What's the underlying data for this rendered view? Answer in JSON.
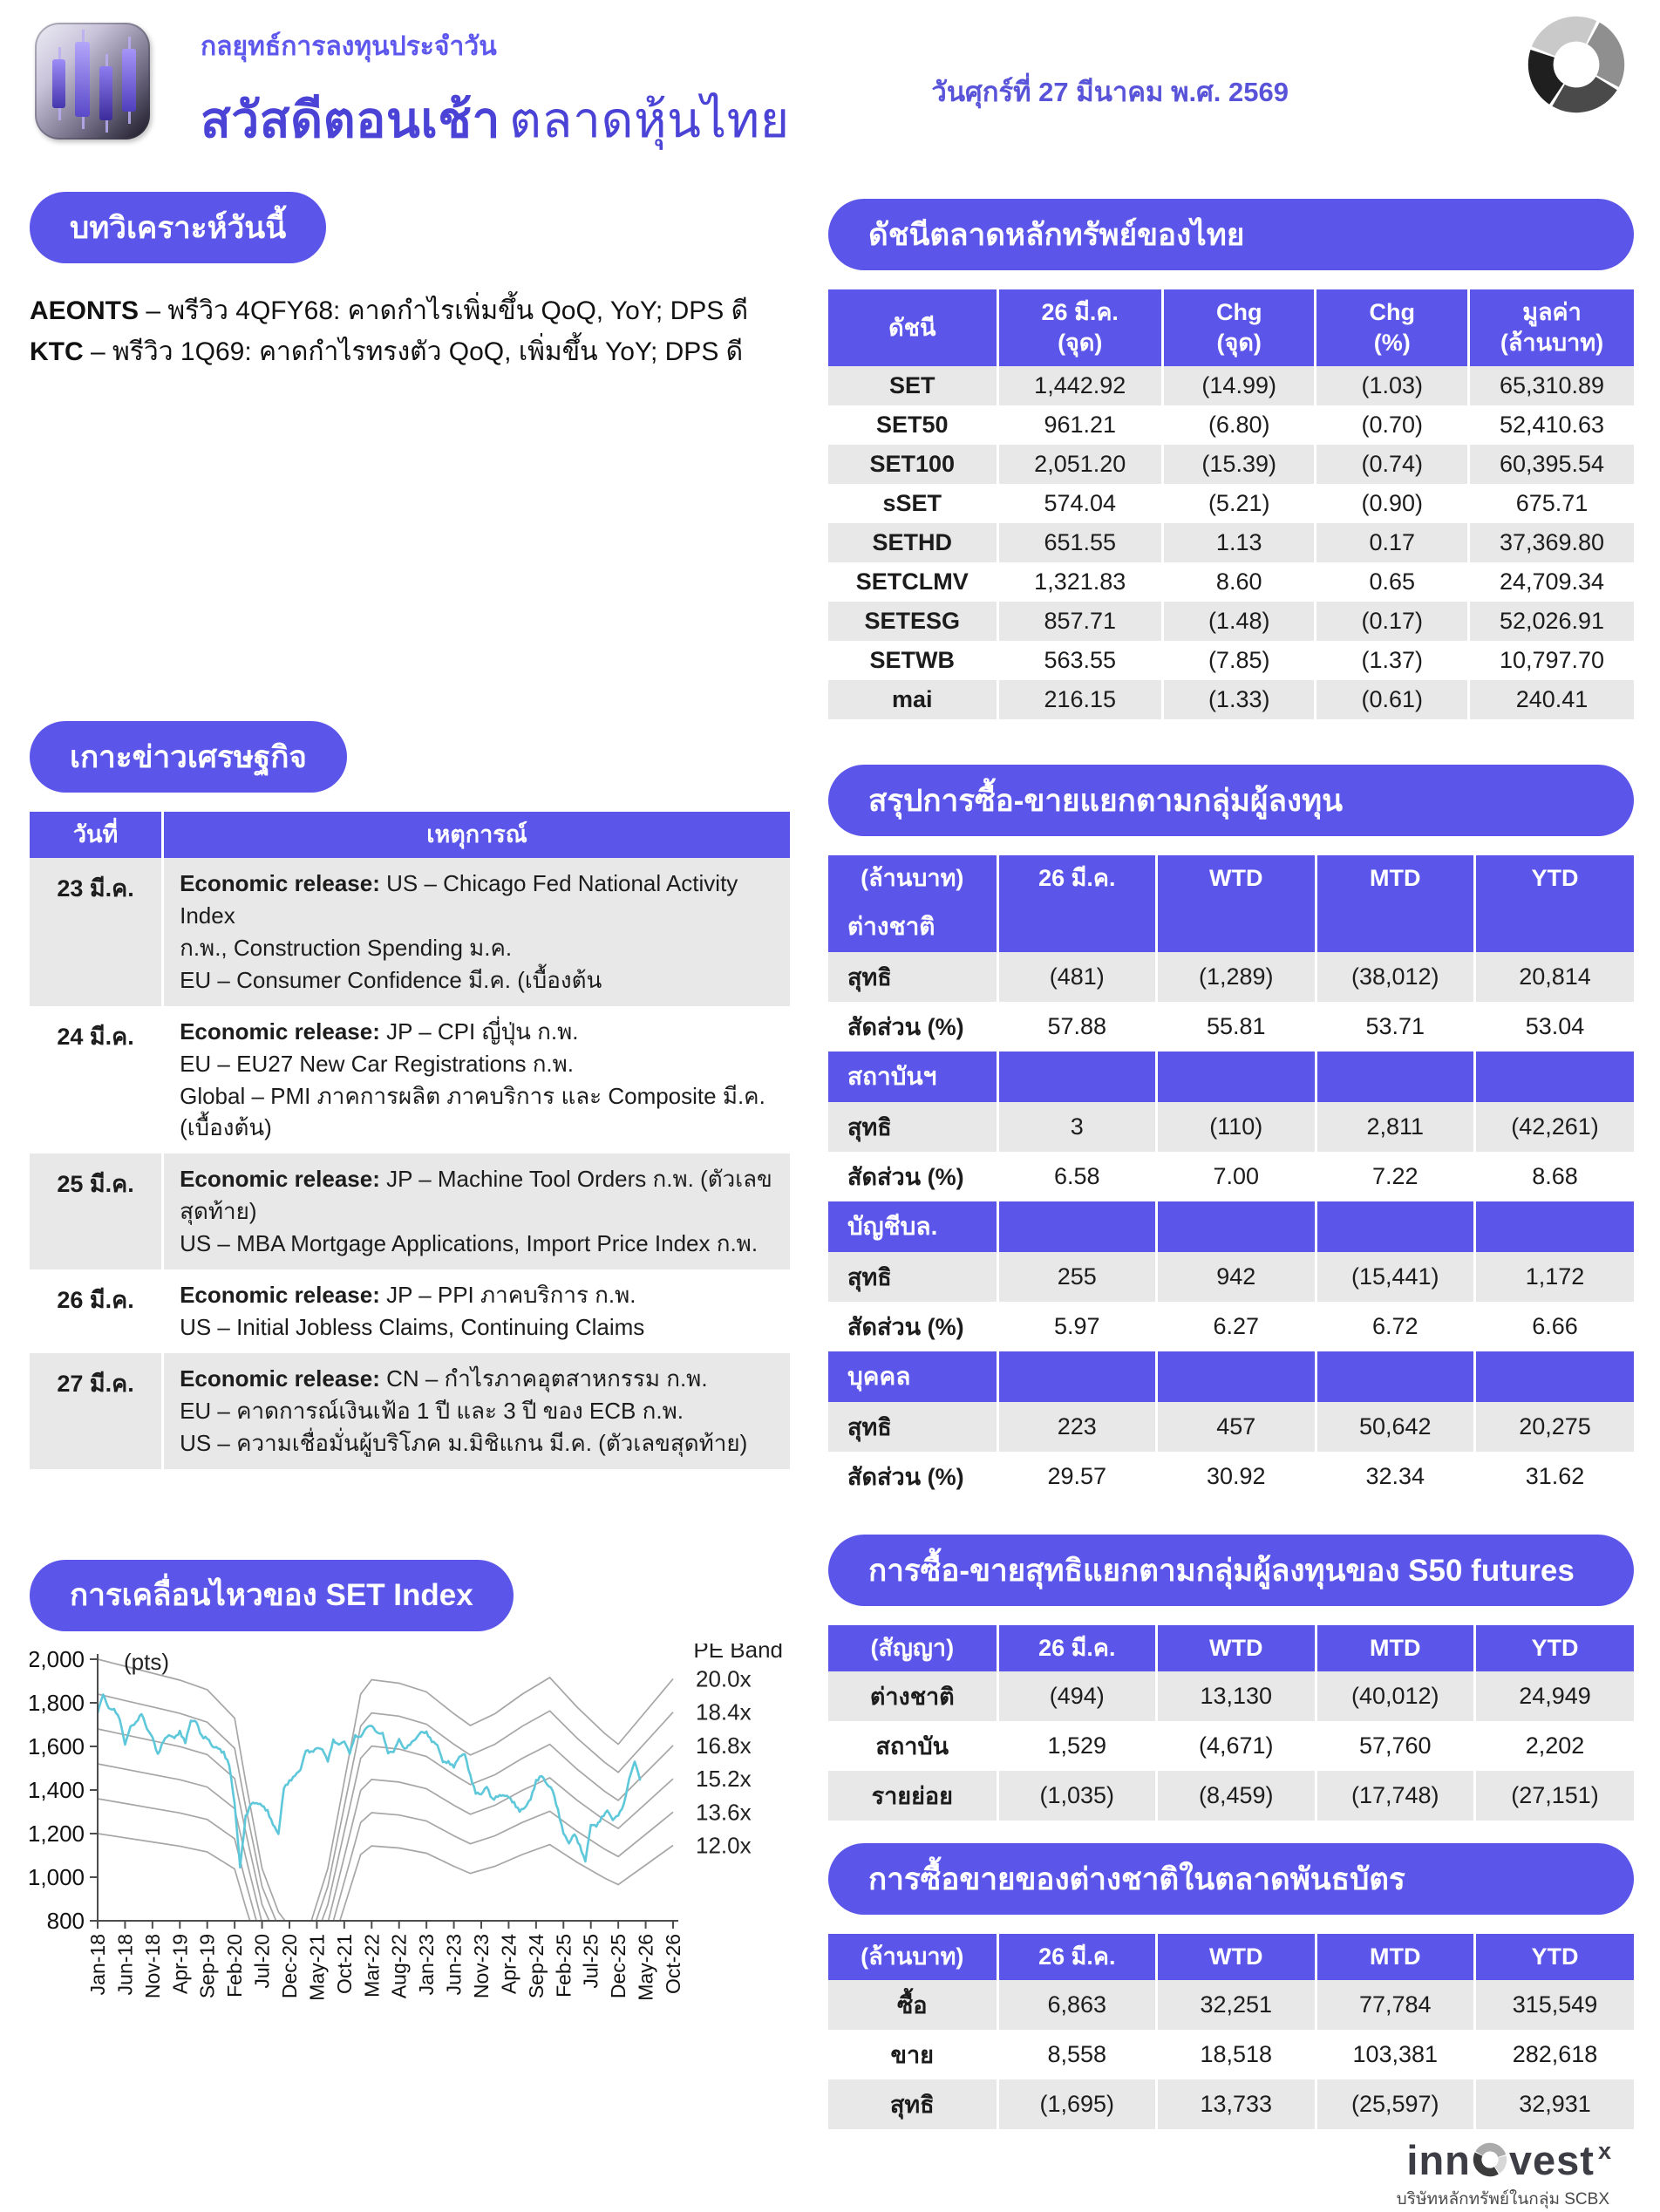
{
  "colors": {
    "accent_purple": "#5b55ea",
    "title_purple": "#4a43d6",
    "row_alt_gray": "#e8e8e8",
    "set_line": "#5ec8da",
    "pe_band_line": "#a6a6a6"
  },
  "header": {
    "pretitle": "กลยุทธ์การลงทุนประจำวัน",
    "title_bold": "สวัสดีตอนเช้า",
    "title_rest": "ตลาดหุ้นไทย",
    "date": "วันศุกร์ที่ 27 มีนาคม พ.ศ. 2569"
  },
  "analysis": {
    "heading": "บทวิเคราะห์วันนี้",
    "items": [
      {
        "ticker": "AEONTS",
        "text": "– พรีวิว 4QFY68: คาดกำไรเพิ่มขึ้น QoQ, YoY; DPS ดี"
      },
      {
        "ticker": "KTC",
        "text": "– พรีวิว 1Q69: คาดกำไรทรงตัว QoQ, เพิ่มขึ้น YoY; DPS ดี"
      }
    ]
  },
  "indices": {
    "heading": "ดัชนีตลาดหลักทรัพย์ของไทย",
    "columns": [
      "ดัชนี",
      "26 มี.ค.\n(จุด)",
      "Chg\n(จุด)",
      "Chg\n(%)",
      "มูลค่า\n(ล้านบาท)"
    ],
    "rows": [
      [
        "SET",
        "1,442.92",
        "(14.99)",
        "(1.03)",
        "65,310.89"
      ],
      [
        "SET50",
        "961.21",
        "(6.80)",
        "(0.70)",
        "52,410.63"
      ],
      [
        "SET100",
        "2,051.20",
        "(15.39)",
        "(0.74)",
        "60,395.54"
      ],
      [
        "sSET",
        "574.04",
        "(5.21)",
        "(0.90)",
        "675.71"
      ],
      [
        "SETHD",
        "651.55",
        "1.13",
        "0.17",
        "37,369.80"
      ],
      [
        "SETCLMV",
        "1,321.83",
        "8.60",
        "0.65",
        "24,709.34"
      ],
      [
        "SETESG",
        "857.71",
        "(1.48)",
        "(0.17)",
        "52,026.91"
      ],
      [
        "SETWB",
        "563.55",
        "(7.85)",
        "(1.37)",
        "10,797.70"
      ],
      [
        "mai",
        "216.15",
        "(1.33)",
        "(0.61)",
        "240.41"
      ]
    ]
  },
  "news": {
    "heading": "เกาะข่าวเศรษฐกิจ",
    "columns": [
      "วันที่",
      "เหตุการณ์"
    ],
    "lead": "Economic release:",
    "rows": [
      {
        "date": "23 มี.ค.",
        "lines": [
          "US – Chicago Fed National Activity Index",
          "ก.พ., Construction Spending ม.ค.",
          "EU – Consumer Confidence มี.ค. (เบื้องต้น"
        ]
      },
      {
        "date": "24 มี.ค.",
        "lines": [
          "JP – CPI ญี่ปุ่น ก.พ.",
          "EU – EU27 New Car Registrations ก.พ.",
          "Global – PMI ภาคการผลิต ภาคบริการ และ Composite มี.ค. (เบื้องต้น)"
        ]
      },
      {
        "date": "25 มี.ค.",
        "lines": [
          "JP – Machine Tool Orders ก.พ. (ตัวเลขสุดท้าย)",
          "US – MBA Mortgage Applications, Import Price Index ก.พ."
        ]
      },
      {
        "date": "26 มี.ค.",
        "lines": [
          "JP – PPI ภาคบริการ ก.พ.",
          "US – Initial Jobless Claims, Continuing Claims"
        ]
      },
      {
        "date": "27 มี.ค.",
        "lines": [
          "CN – กำไรภาคอุตสาหกรรม ก.พ.",
          "EU – คาดการณ์เงินเฟ้อ 1 ปี และ 3 ปี ของ ECB ก.พ.",
          "US – ความเชื่อมั่นผู้บริโภค ม.มิชิแกน มี.ค. (ตัวเลขสุดท้าย)"
        ]
      }
    ]
  },
  "investor_summary": {
    "heading": "สรุปการซื้อ-ขายแยกตามกลุ่มผู้ลงทุน",
    "unit": "(ล้านบาท)",
    "periods": [
      "26 มี.ค.",
      "WTD",
      "MTD",
      "YTD"
    ],
    "net_label": "สุทธิ",
    "share_label": "สัดส่วน (%)",
    "groups": [
      {
        "name": "ต่างชาติ",
        "net": [
          "(481)",
          "(1,289)",
          "(38,012)",
          "20,814"
        ],
        "share": [
          "57.88",
          "55.81",
          "53.71",
          "53.04"
        ]
      },
      {
        "name": "สถาบันฯ",
        "net": [
          "3",
          "(110)",
          "2,811",
          "(42,261)"
        ],
        "share": [
          "6.58",
          "7.00",
          "7.22",
          "8.68"
        ]
      },
      {
        "name": "บัญชีบล.",
        "net": [
          "255",
          "942",
          "(15,441)",
          "1,172"
        ],
        "share": [
          "5.97",
          "6.27",
          "6.72",
          "6.66"
        ]
      },
      {
        "name": "บุคคล",
        "net": [
          "223",
          "457",
          "50,642",
          "20,275"
        ],
        "share": [
          "29.57",
          "30.92",
          "32.34",
          "31.62"
        ]
      }
    ]
  },
  "s50_futures": {
    "heading": "การซื้อ-ขายสุทธิแยกตามกลุ่มผู้ลงทุนของ S50 futures",
    "unit": "(สัญญา)",
    "periods": [
      "26 มี.ค.",
      "WTD",
      "MTD",
      "YTD"
    ],
    "rows": [
      {
        "label": "ต่างชาติ",
        "values": [
          "(494)",
          "13,130",
          "(40,012)",
          "24,949"
        ]
      },
      {
        "label": "สถาบัน",
        "values": [
          "1,529",
          "(4,671)",
          "57,760",
          "2,202"
        ]
      },
      {
        "label": "รายย่อย",
        "values": [
          "(1,035)",
          "(8,459)",
          "(17,748)",
          "(27,151)"
        ]
      }
    ]
  },
  "bond_market": {
    "heading": "การซื้อขายของต่างชาติในตลาดพันธบัตร",
    "unit": "(ล้านบาท)",
    "periods": [
      "26 มี.ค.",
      "WTD",
      "MTD",
      "YTD"
    ],
    "rows": [
      {
        "label": "ซื้อ",
        "values": [
          "6,863",
          "32,251",
          "77,784",
          "315,549"
        ]
      },
      {
        "label": "ขาย",
        "values": [
          "8,558",
          "18,518",
          "103,381",
          "282,618"
        ]
      },
      {
        "label": "สุทธิ",
        "values": [
          "(1,695)",
          "13,733",
          "(25,597)",
          "32,931"
        ]
      }
    ]
  },
  "chart_data": {
    "type": "line",
    "title": "การเคลื่อนไหวของ SET Index",
    "unit_label": "(pts)",
    "pe_band_label": "PE Band",
    "ylim": [
      800,
      2000
    ],
    "yticks": [
      800,
      1000,
      1200,
      1400,
      1600,
      1800,
      2000
    ],
    "x_tick_labels": [
      "Jan-18",
      "Jun-18",
      "Nov-18",
      "Apr-19",
      "Sep-19",
      "Feb-20",
      "Jul-20",
      "Dec-20",
      "May-21",
      "Oct-21",
      "Mar-22",
      "Aug-22",
      "Jan-23",
      "Jun-23",
      "Nov-23",
      "Apr-24",
      "Sep-24",
      "Feb-25",
      "Jul-25",
      "Dec-25",
      "May-26",
      "Oct-26"
    ],
    "months_per_tick": 5,
    "band_multiples": [
      20.0,
      18.4,
      16.8,
      15.2,
      13.6,
      12.0
    ],
    "band_labels": [
      "20.0x",
      "18.4x",
      "16.8x",
      "15.2x",
      "13.6x",
      "12.0x"
    ],
    "eps_path": [
      [
        0,
        100
      ],
      [
        1,
        98.4
      ],
      [
        2,
        96.8
      ],
      [
        3,
        95.2
      ],
      [
        4,
        93
      ],
      [
        5,
        86.5
      ],
      [
        5.4,
        72
      ],
      [
        6,
        52
      ],
      [
        6.6,
        42
      ],
      [
        7.2,
        37
      ],
      [
        7.8,
        40
      ],
      [
        8.4,
        52
      ],
      [
        9,
        72
      ],
      [
        9.6,
        92
      ],
      [
        10,
        95.3
      ],
      [
        11,
        94.5
      ],
      [
        12,
        92.5
      ],
      [
        13,
        87.5
      ],
      [
        13.6,
        84.8
      ],
      [
        14.5,
        87.5
      ],
      [
        15.5,
        92
      ],
      [
        16.5,
        95.8
      ],
      [
        17.5,
        89
      ],
      [
        18.5,
        83
      ],
      [
        19,
        80.5
      ],
      [
        20,
        88
      ],
      [
        21,
        95.5
      ]
    ],
    "set_index_start": "Jan-18",
    "set_index_monthly": [
      1753,
      1838,
      1776,
      1772,
      1726,
      1608,
      1692,
      1712,
      1748,
      1680,
      1642,
      1566,
      1622,
      1652,
      1638,
      1672,
      1615,
      1718,
      1712,
      1650,
      1635,
      1598,
      1590,
      1576,
      1512,
      1338,
      1045,
      1282,
      1335,
      1340,
      1327,
      1308,
      1240,
      1198,
      1408,
      1445,
      1465,
      1492,
      1580,
      1578,
      1592,
      1586,
      1530,
      1632,
      1608,
      1622,
      1566,
      1652,
      1644,
      1684,
      1694,
      1664,
      1662,
      1568,
      1574,
      1634,
      1590,
      1607,
      1633,
      1666,
      1668,
      1620,
      1606,
      1528,
      1533,
      1503,
      1553,
      1564,
      1470,
      1383,
      1380,
      1414,
      1362,
      1368,
      1376,
      1366,
      1345,
      1300,
      1320,
      1356,
      1446,
      1464,
      1426,
      1398,
      1312,
      1200,
      1155,
      1196,
      1148,
      1072,
      1240,
      1232,
      1278,
      1306,
      1262,
      1282,
      1335,
      1452,
      1530,
      1443
    ],
    "last_close": 1442.92
  },
  "footer": {
    "brand_left": "inn",
    "brand_right": "vest",
    "brand_sup": "x",
    "tagline": "บริษัทหลักทรัพย์ในกลุ่ม SCBX"
  }
}
